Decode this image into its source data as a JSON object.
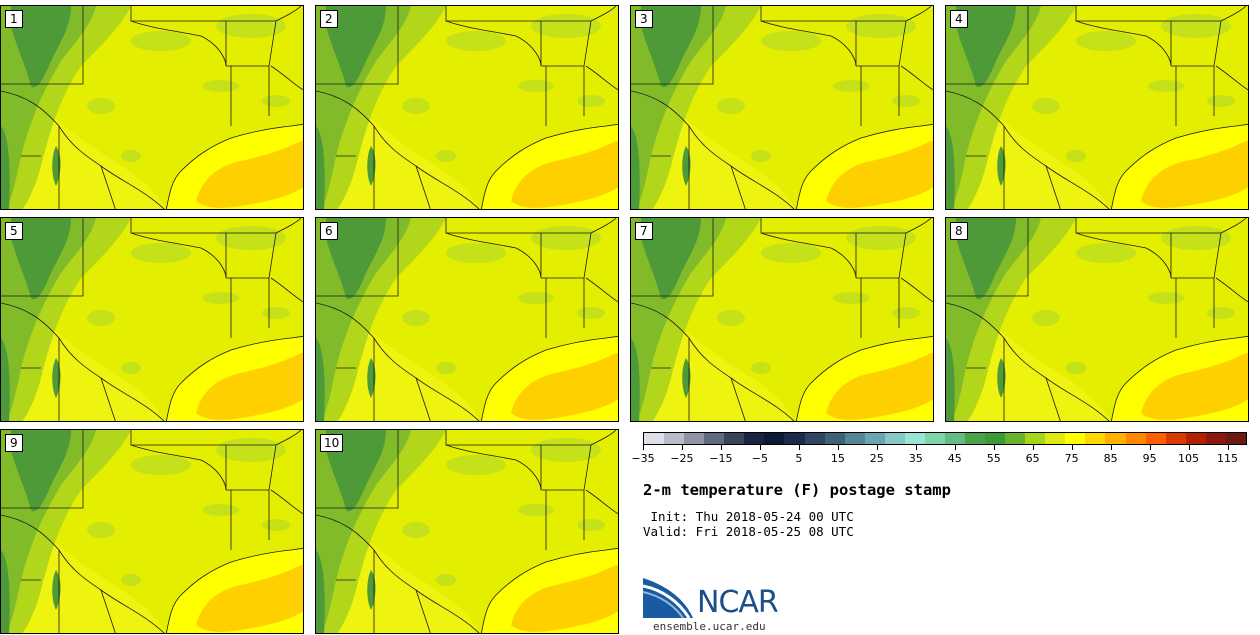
{
  "title": "2-m temperature (F) postage stamp",
  "init_label": " Init: Thu 2018-05-24 00 UTC",
  "valid_label": "Valid: Fri 2018-05-25 08 UTC",
  "logo": {
    "name": "NCAR",
    "url": "ensemble.ucar.edu"
  },
  "panels": [
    {
      "label": "1"
    },
    {
      "label": "2"
    },
    {
      "label": "3"
    },
    {
      "label": "4"
    },
    {
      "label": "5"
    },
    {
      "label": "6"
    },
    {
      "label": "7"
    },
    {
      "label": "8"
    },
    {
      "label": "9"
    },
    {
      "label": "10"
    }
  ],
  "colorbar": {
    "min": -35,
    "max": 120,
    "step": 5,
    "tick_labels": [
      "-35",
      "-25",
      "-15",
      "-5",
      "5",
      "15",
      "25",
      "35",
      "45",
      "55",
      "65",
      "75",
      "85",
      "95",
      "105",
      "115"
    ],
    "colors": [
      "#dcdfe8",
      "#b8bcc8",
      "#8e94a4",
      "#62697c",
      "#3a4358",
      "#1a2440",
      "#0e1a34",
      "#1c2c48",
      "#2f4660",
      "#3f6274",
      "#558694",
      "#6aa6b0",
      "#85c8c4",
      "#9ae4d6",
      "#7fd4ab",
      "#62bd82",
      "#4aa24a",
      "#3c9a36",
      "#6ab22e",
      "#a8d41c",
      "#dcec10",
      "#ffff00",
      "#ffd800",
      "#ffb000",
      "#ff8800",
      "#ff5f00",
      "#d83a00",
      "#b02200",
      "#8c1810",
      "#6a1a10"
    ]
  },
  "map": {
    "colors": {
      "land": "#e4ee00",
      "west_dark": "#4f9a38",
      "west_mid": "#82bb2a",
      "west_light": "#b2d61a",
      "patch": "#c4e11a",
      "warm": "#f6f71c",
      "gulf": "#ffff00",
      "gulf_warm": "#ffd000",
      "lines": "#1a1a1a"
    }
  }
}
